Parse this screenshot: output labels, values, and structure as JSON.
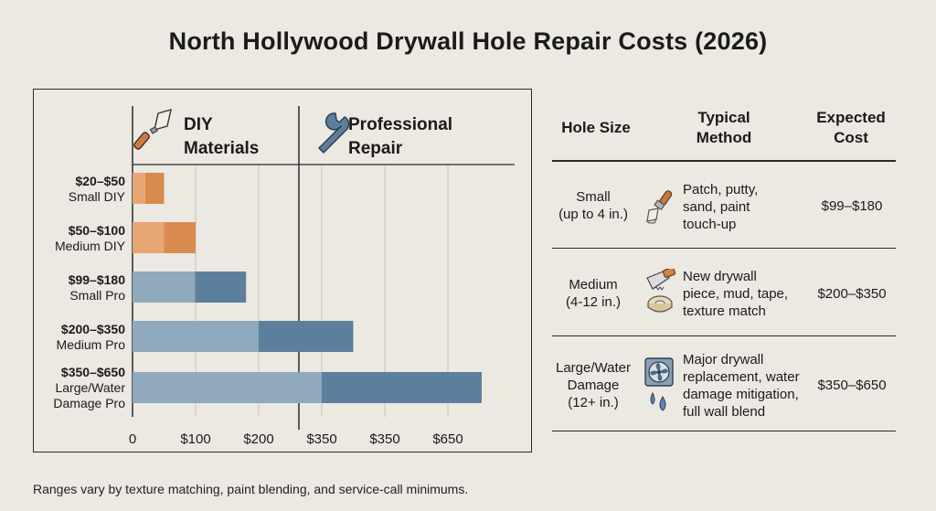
{
  "title": "North Hollywood Drywall Hole Repair Costs (2026)",
  "footnote": "Ranges vary by texture matching, paint blending, and service-call minimums.",
  "colors": {
    "diy_light": "#e6a674",
    "diy_dark": "#d88a4f",
    "pro_light": "#8fa9bd",
    "pro_dark": "#5d7f9e",
    "grid": "#c9c4bc",
    "background": "#ece8e2"
  },
  "chart_data": {
    "type": "bar",
    "orientation": "horizontal",
    "sections": [
      {
        "label_line1": "DIY",
        "label_line2": "Materials",
        "icon": "putty-knife-icon"
      },
      {
        "label_line1": "Professional",
        "label_line2": "Repair",
        "icon": "wrench-icon"
      }
    ],
    "x_tick_labels": [
      "0",
      "$100",
      "$200",
      "$350",
      "$350",
      "$650"
    ],
    "categories": [
      {
        "range": "$20–$50",
        "name": "Small DIY",
        "low": 20,
        "high": 50,
        "group": "diy"
      },
      {
        "range": "$50–$100",
        "name": "Medium DIY",
        "low": 50,
        "high": 100,
        "group": "diy"
      },
      {
        "range": "$99–$180",
        "name": "Small Pro",
        "low": 99,
        "high": 180,
        "group": "pro"
      },
      {
        "range": "$200–$350",
        "name": "Medium Pro",
        "low": 200,
        "high": 350,
        "group": "pro"
      },
      {
        "range": "$350–$650",
        "name_line1": "Large/Water",
        "name_line2": "Damage Pro",
        "low": 350,
        "high": 650,
        "group": "pro"
      }
    ]
  },
  "table": {
    "headers": {
      "size": "Hole Size",
      "method_line1": "Typical",
      "method_line2": "Method",
      "cost_line1": "Expected",
      "cost_line2": "Cost"
    },
    "rows": [
      {
        "size_line1": "Small",
        "size_line2": "(up to 4 in.)",
        "icon": "paintbrush-icon",
        "method": [
          "Patch, putty,",
          "sand, paint",
          "touch-up"
        ],
        "cost": "$99–$180"
      },
      {
        "size_line1": "Medium",
        "size_line2": "(4-12 in.)",
        "icon": "drywall-saw-tape-icon",
        "method": [
          "New drywall",
          "piece, mud, tape,",
          "texture match"
        ],
        "cost": "$200–$350"
      },
      {
        "size_line1": "Large/Water",
        "size_line2": "Damage",
        "size_line3": "(12+ in.)",
        "icon": "fan-water-drop-icon",
        "method": [
          "Major drywall",
          "replacement, water",
          "damage mitigation,",
          "full wall blend"
        ],
        "cost": "$350–$650"
      }
    ]
  }
}
